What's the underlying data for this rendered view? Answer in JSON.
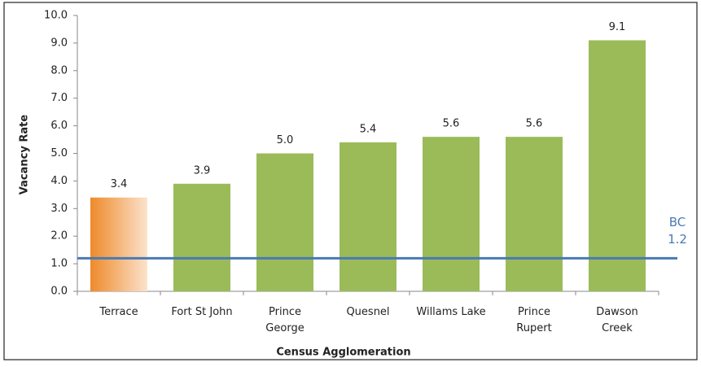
{
  "chart_data": {
    "type": "bar",
    "xlabel": "Census Agglomeration",
    "ylabel": "Vacancy Rate",
    "categories": [
      "Terrace",
      "Fort St John",
      "Prince\nGeorge",
      "Quesnel",
      "Willams Lake",
      "Prince\nRupert",
      "Dawson\nCreek"
    ],
    "values": [
      3.4,
      3.9,
      5,
      5.4,
      5.6,
      5.6,
      9.1
    ],
    "value_labels": [
      "3.4",
      "3.9",
      "5.0",
      "5.4",
      "5.6",
      "5.6",
      "9.1"
    ],
    "colors": [
      "#ee8a2a",
      "#9bbb59",
      "#9bbb59",
      "#9bbb59",
      "#9bbb59",
      "#9bbb59",
      "#9bbb59"
    ],
    "ylim": [
      0,
      10
    ],
    "yticks": [
      {
        "value": 0,
        "label": "0.0"
      },
      {
        "value": 1,
        "label": "1.0"
      },
      {
        "value": 2,
        "label": "2.0"
      },
      {
        "value": 3,
        "label": "3.0"
      },
      {
        "value": 4,
        "label": "4.0"
      },
      {
        "value": 5,
        "label": "5.0"
      },
      {
        "value": 6,
        "label": "6.0"
      },
      {
        "value": 7,
        "label": "7.0"
      },
      {
        "value": 8,
        "label": "8.0"
      },
      {
        "value": 9,
        "label": "9.0"
      },
      {
        "value": 10,
        "label": "10.0"
      }
    ],
    "reference_line": {
      "label": "BC",
      "value": 1.2,
      "color": "#4a7ab3"
    }
  }
}
